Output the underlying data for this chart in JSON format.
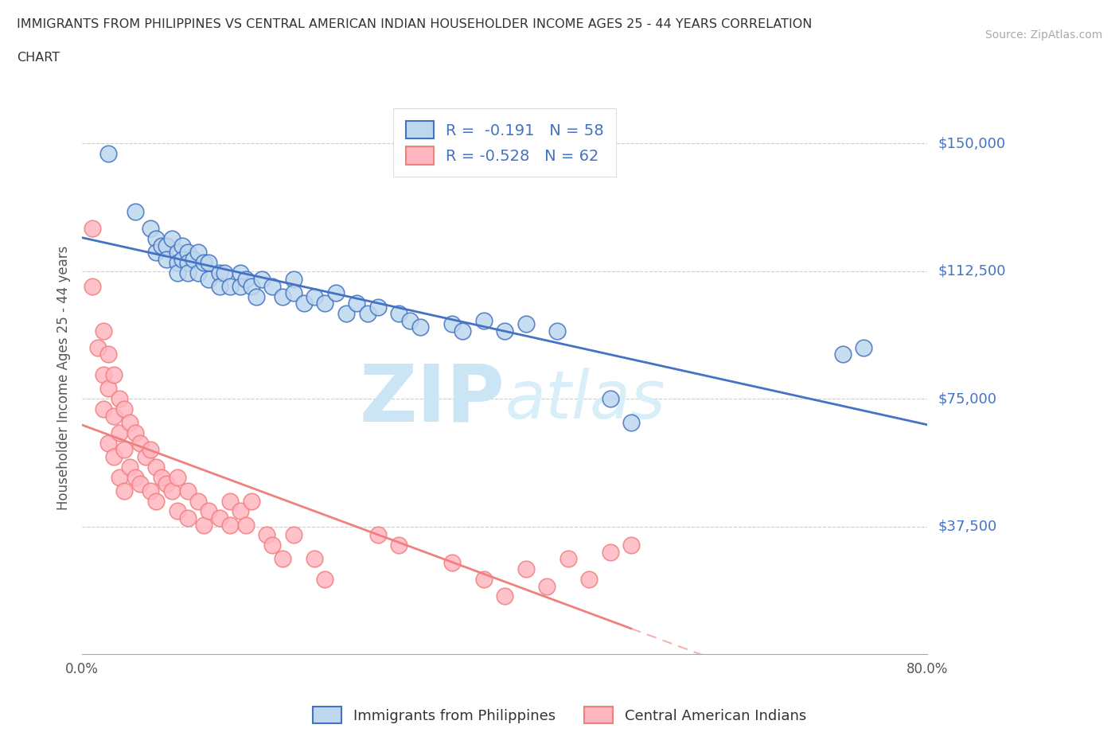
{
  "title_line1": "IMMIGRANTS FROM PHILIPPINES VS CENTRAL AMERICAN INDIAN HOUSEHOLDER INCOME AGES 25 - 44 YEARS CORRELATION",
  "title_line2": "CHART",
  "source_text": "Source: ZipAtlas.com",
  "ylabel": "Householder Income Ages 25 - 44 years",
  "xlim": [
    0.0,
    0.8
  ],
  "ylim": [
    0,
    162500
  ],
  "yticks": [
    0,
    37500,
    75000,
    112500,
    150000
  ],
  "ytick_labels": [
    "",
    "$37,500",
    "$75,000",
    "$112,500",
    "$150,000"
  ],
  "xticks": [
    0.0,
    0.1,
    0.2,
    0.3,
    0.4,
    0.5,
    0.6,
    0.7,
    0.8
  ],
  "xtick_labels": [
    "0.0%",
    "",
    "",
    "",
    "",
    "",
    "",
    "",
    "80.0%"
  ],
  "grid_color": "#cccccc",
  "background_color": "#ffffff",
  "watermark_text": "ZIPatlas",
  "watermark_color": "#cce5f5",
  "blue_color": "#4472c4",
  "pink_color": "#f08080",
  "blue_fill": "#bdd7ee",
  "pink_fill": "#ffb6c1",
  "legend_R_blue": "-0.191",
  "legend_N_blue": "58",
  "legend_R_pink": "-0.528",
  "legend_N_pink": "62",
  "legend_label_blue": "Immigrants from Philippines",
  "legend_label_pink": "Central American Indians",
  "blue_scatter_x": [
    0.025,
    0.05,
    0.065,
    0.07,
    0.07,
    0.075,
    0.08,
    0.08,
    0.085,
    0.09,
    0.09,
    0.09,
    0.095,
    0.095,
    0.1,
    0.1,
    0.1,
    0.105,
    0.11,
    0.11,
    0.115,
    0.12,
    0.12,
    0.13,
    0.13,
    0.135,
    0.14,
    0.15,
    0.15,
    0.155,
    0.16,
    0.165,
    0.17,
    0.18,
    0.19,
    0.2,
    0.2,
    0.21,
    0.22,
    0.23,
    0.24,
    0.25,
    0.26,
    0.27,
    0.28,
    0.3,
    0.31,
    0.32,
    0.35,
    0.36,
    0.38,
    0.4,
    0.42,
    0.45,
    0.5,
    0.52,
    0.72,
    0.74
  ],
  "blue_scatter_y": [
    147000,
    130000,
    125000,
    122000,
    118000,
    120000,
    120000,
    116000,
    122000,
    118000,
    115000,
    112000,
    120000,
    116000,
    118000,
    115000,
    112000,
    116000,
    118000,
    112000,
    115000,
    115000,
    110000,
    112000,
    108000,
    112000,
    108000,
    112000,
    108000,
    110000,
    108000,
    105000,
    110000,
    108000,
    105000,
    110000,
    106000,
    103000,
    105000,
    103000,
    106000,
    100000,
    103000,
    100000,
    102000,
    100000,
    98000,
    96000,
    97000,
    95000,
    98000,
    95000,
    97000,
    95000,
    75000,
    68000,
    88000,
    90000
  ],
  "pink_scatter_x": [
    0.01,
    0.01,
    0.015,
    0.02,
    0.02,
    0.02,
    0.025,
    0.025,
    0.025,
    0.03,
    0.03,
    0.03,
    0.035,
    0.035,
    0.035,
    0.04,
    0.04,
    0.04,
    0.045,
    0.045,
    0.05,
    0.05,
    0.055,
    0.055,
    0.06,
    0.065,
    0.065,
    0.07,
    0.07,
    0.075,
    0.08,
    0.085,
    0.09,
    0.09,
    0.1,
    0.1,
    0.11,
    0.115,
    0.12,
    0.13,
    0.14,
    0.14,
    0.15,
    0.155,
    0.16,
    0.175,
    0.18,
    0.19,
    0.2,
    0.22,
    0.23,
    0.28,
    0.3,
    0.35,
    0.38,
    0.4,
    0.42,
    0.44,
    0.46,
    0.48,
    0.5,
    0.52
  ],
  "pink_scatter_y": [
    125000,
    108000,
    90000,
    95000,
    82000,
    72000,
    88000,
    78000,
    62000,
    82000,
    70000,
    58000,
    75000,
    65000,
    52000,
    72000,
    60000,
    48000,
    68000,
    55000,
    65000,
    52000,
    62000,
    50000,
    58000,
    60000,
    48000,
    55000,
    45000,
    52000,
    50000,
    48000,
    52000,
    42000,
    48000,
    40000,
    45000,
    38000,
    42000,
    40000,
    38000,
    45000,
    42000,
    38000,
    45000,
    35000,
    32000,
    28000,
    35000,
    28000,
    22000,
    35000,
    32000,
    27000,
    22000,
    17000,
    25000,
    20000,
    28000,
    22000,
    30000,
    32000
  ]
}
